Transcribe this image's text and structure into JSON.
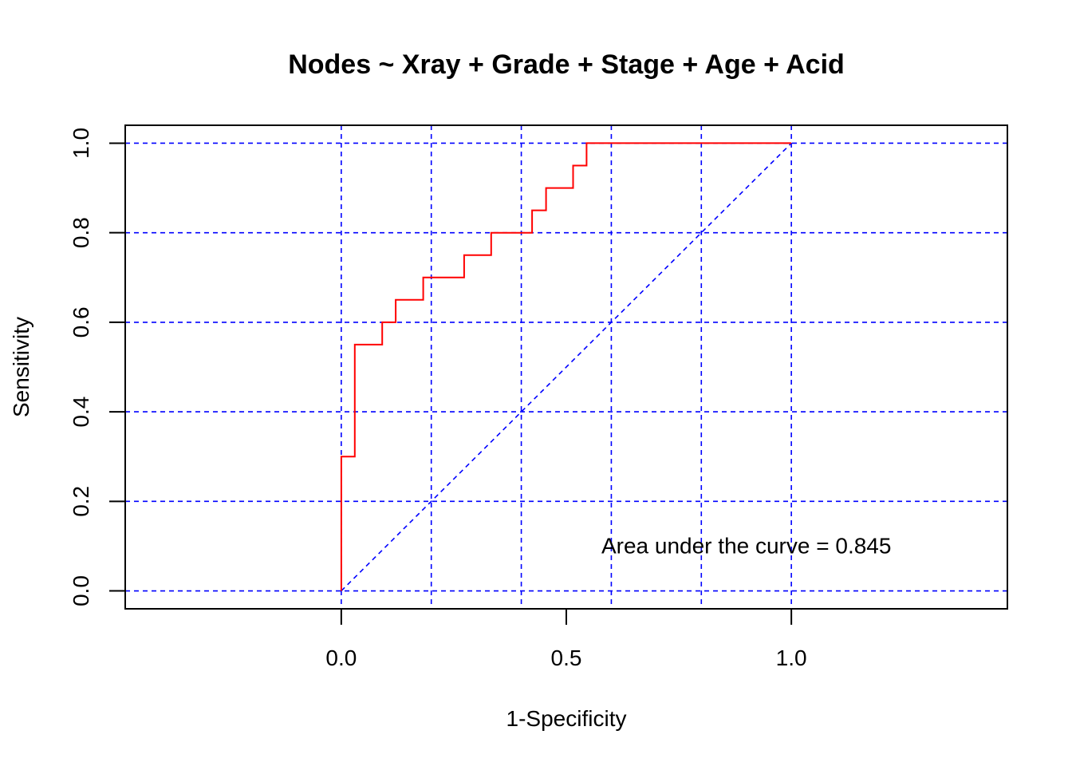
{
  "chart_data": {
    "type": "line",
    "title": "Nodes ~ Xray + Grade + Stage + Age + Acid",
    "xlabel": "1-Specificity",
    "ylabel": "Sensitivity",
    "xlim": [
      -0.48,
      1.48
    ],
    "ylim": [
      -0.04,
      1.04
    ],
    "x_ticks": [
      0.0,
      0.5,
      1.0
    ],
    "x_tick_labels": [
      "0.0",
      "0.5",
      "1.0"
    ],
    "y_ticks": [
      0.0,
      0.2,
      0.4,
      0.6,
      0.8,
      1.0
    ],
    "y_tick_labels": [
      "0.0",
      "0.2",
      "0.4",
      "0.6",
      "0.8",
      "1.0"
    ],
    "grid": {
      "on": true,
      "style": "dashed",
      "x": [
        0.0,
        0.2,
        0.4,
        0.6,
        0.8,
        1.0
      ],
      "y": [
        0.0,
        0.2,
        0.4,
        0.6,
        0.8,
        1.0
      ]
    },
    "series": [
      {
        "style": "step",
        "x": [
          0.0,
          0.0,
          0.03,
          0.03,
          0.091,
          0.091,
          0.121,
          0.121,
          0.182,
          0.182,
          0.273,
          0.273,
          0.333,
          0.333,
          0.424,
          0.424,
          0.455,
          0.455,
          0.515,
          0.515,
          0.545,
          0.545,
          1.0
        ],
        "y": [
          0.0,
          0.3,
          0.3,
          0.55,
          0.55,
          0.6,
          0.6,
          0.65,
          0.65,
          0.7,
          0.7,
          0.75,
          0.75,
          0.8,
          0.8,
          0.85,
          0.85,
          0.9,
          0.9,
          0.95,
          0.95,
          1.0,
          1.0
        ]
      },
      {
        "style": "dashed",
        "x": [
          0.0,
          1.0
        ],
        "y": [
          0.0,
          1.0
        ]
      }
    ],
    "annotations": [
      {
        "text": "Area under the curve = 0.845",
        "x": 0.9,
        "y": 0.1
      }
    ],
    "colors": {
      "roc": "#ff0000",
      "reference": "#0000ff",
      "grid": "#0000ff",
      "axis": "#000000"
    }
  }
}
